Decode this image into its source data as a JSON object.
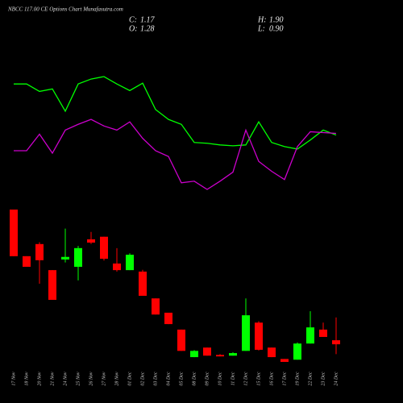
{
  "chart_data": {
    "type": "candlestick",
    "title": "NBCC 117.00 CE Options Chart Munafasutra.com",
    "readout": {
      "labels": [
        "C:",
        "H:",
        "O:",
        "L:"
      ],
      "value_labels": [
        "1.17",
        "1.90",
        "1.28",
        "0.90"
      ]
    },
    "categories": [
      "17 Nov",
      "18 Nov",
      "20 Nov",
      "21 Nov",
      "24 Nov",
      "25 Nov",
      "26 Nov",
      "27 Nov",
      "28 Nov",
      "01 Dec",
      "02 Dec",
      "03 Dec",
      "04 Dec",
      "05 Dec",
      "08 Dec",
      "09 Dec",
      "10 Dec",
      "11 Dec",
      "12 Dec",
      "15 Dec",
      "16 Dec",
      "17 Dec",
      "19 Dec",
      "22 Dec",
      "23 Dec",
      "24 Dec"
    ],
    "open": [
      4.84,
      3.57,
      3.9,
      3.19,
      3.48,
      3.28,
      4.03,
      4.1,
      3.37,
      3.19,
      3.15,
      2.42,
      2.03,
      1.57,
      0.82,
      1.08,
      0.88,
      0.86,
      0.99,
      1.76,
      1.08,
      0.77,
      0.75,
      1.19,
      1.57,
      1.28
    ],
    "high": [
      4.84,
      3.57,
      3.95,
      3.19,
      4.32,
      3.85,
      4.23,
      4.1,
      3.79,
      3.65,
      3.2,
      2.42,
      2.03,
      1.57,
      1.01,
      1.08,
      0.9,
      0.95,
      2.42,
      1.8,
      1.08,
      0.77,
      1.22,
      2.07,
      1.76,
      1.9
    ],
    "low": [
      3.57,
      3.28,
      2.82,
      2.38,
      3.4,
      2.91,
      3.9,
      3.45,
      3.15,
      3.19,
      2.49,
      1.98,
      1.72,
      0.99,
      0.82,
      0.86,
      0.84,
      0.86,
      0.99,
      1.0,
      0.82,
      0.69,
      0.75,
      1.19,
      1.37,
      0.9
    ],
    "close": [
      3.57,
      3.28,
      3.46,
      2.38,
      3.55,
      3.79,
      3.94,
      3.5,
      3.19,
      3.61,
      2.49,
      1.98,
      1.72,
      0.99,
      0.99,
      0.86,
      0.84,
      0.93,
      1.96,
      1.02,
      0.82,
      0.69,
      1.19,
      1.63,
      1.37,
      1.17
    ],
    "up_color": "#00ff00",
    "down_color": "#ff0000",
    "lines": [
      {
        "color": "#00ff00",
        "values": [
          196,
          196,
          187,
          190,
          163,
          196,
          202,
          205,
          196,
          188,
          197,
          165,
          153,
          147,
          125,
          124,
          122,
          121,
          122,
          150,
          125,
          120,
          117,
          128,
          140,
          134
        ]
      },
      {
        "color": "#cc00cc",
        "values": [
          115,
          115,
          135,
          112,
          140,
          147,
          153,
          145,
          140,
          150,
          130,
          115,
          108,
          76,
          78,
          68,
          78,
          89,
          140,
          102,
          90,
          80,
          120,
          138,
          137,
          136
        ]
      }
    ]
  }
}
